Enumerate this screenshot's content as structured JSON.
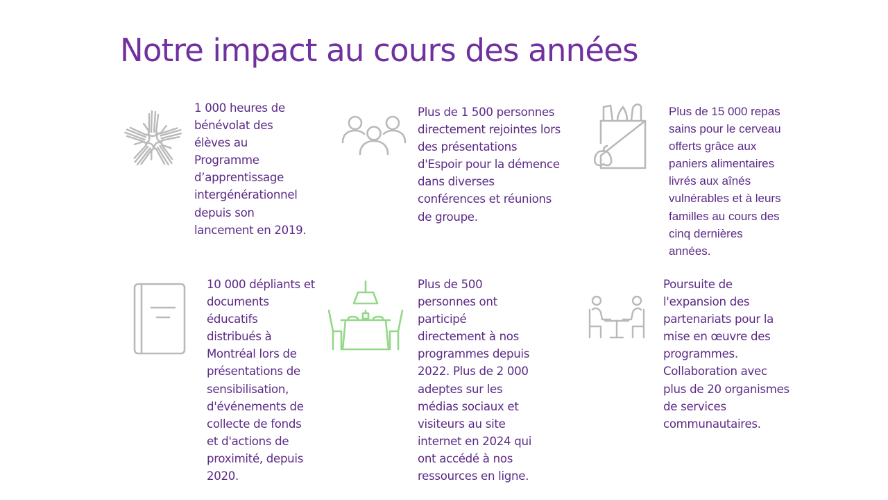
{
  "slide": {
    "title": "Notre impact au cours des années"
  },
  "colors": {
    "title": "#7030a0",
    "text": "#5b2a86",
    "icon_gray": "#b9b9b9",
    "icon_green": "#92d887"
  },
  "items": [
    {
      "icon": "hands-circle-icon",
      "text": "1 000 heures de\nbénévolat des\nélèves au\nProgramme\nd’apprentissage\nintergénérationnel\ndepuis son\nlancement en 2019."
    },
    {
      "icon": "people-group-icon",
      "text": "Plus de 1 500 personnes\ndirectement rejointes lors\ndes présentations\nd'Espoir pour la démence\ndans diverses\nconférences et réunions\nde groupe."
    },
    {
      "icon": "grocery-bag-icon",
      "text": "Plus de 15 000 repas\nsains pour le cerveau\nofferts grâce aux\npaniers alimentaires\nlivrés aux aînés\nvulnérables et à leurs\nfamilles au cours des\ncinq dernières\nannées."
    },
    {
      "icon": "book-icon",
      "text": "10 000 dépliants et\ndocuments\néducatifs\ndistribués à\nMontréal lors de\nprésentations de\nsensibilisation,\nd'événements de\ncollecte de fonds\net d'actions de\nproximité, depuis\n2020."
    },
    {
      "icon": "dining-table-icon",
      "text": "Plus de 500\npersonnes ont\nparticipé\ndirectement à nos\nprogrammes depuis\n2022.  Plus de 2 000\nadeptes sur les\nmédias sociaux et\nvisiteurs au site\ninternet en 2024 qui\nont accédé à nos\nressources en ligne."
    },
    {
      "icon": "meeting-people-icon",
      "text": "Poursuite de\nl'expansion des\npartenariats pour la\nmise en œuvre des\nprogrammes.\nCollaboration avec\nplus de 20 organismes\nde services\ncommunautaires."
    }
  ]
}
